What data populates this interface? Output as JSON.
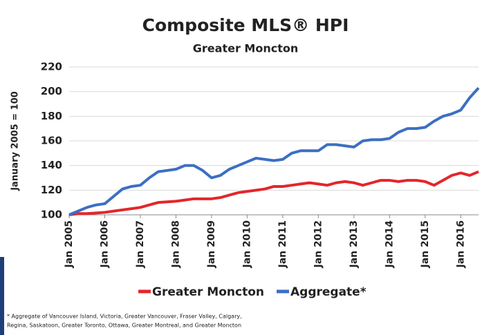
{
  "chart_data": {
    "type": "line",
    "title": "Composite MLS® HPI",
    "subtitle": "Greater Moncton",
    "y_label": "January 2005 = 100",
    "categories": [
      "Jan 2005",
      null,
      null,
      null,
      "Jan 2006",
      null,
      null,
      null,
      "Jan 2007",
      null,
      null,
      null,
      "Jan 2008",
      null,
      null,
      null,
      "Jan 2009",
      null,
      null,
      null,
      "Jan 2010",
      null,
      null,
      null,
      "Jan 2011",
      null,
      null,
      null,
      "Jan 2012",
      null,
      null,
      null,
      "Jan 2013",
      null,
      null,
      null,
      "Jan 2014",
      null,
      null,
      null,
      "Jan 2015",
      null,
      null,
      null,
      "Jan 2016",
      null,
      null
    ],
    "series": [
      {
        "name": "Greater Moncton",
        "color": "#e3262b",
        "values": [
          100,
          101,
          101,
          101.5,
          102,
          103,
          104,
          105,
          106,
          108,
          110,
          110.5,
          111,
          112,
          113,
          113,
          113,
          114,
          116,
          118,
          119,
          120,
          121,
          123,
          123,
          124,
          125,
          126,
          125,
          124,
          126,
          127,
          126,
          124,
          126,
          128,
          128,
          127,
          128,
          128,
          127,
          124,
          128,
          132,
          134,
          132,
          135
        ]
      },
      {
        "name": "Aggregate*",
        "color": "#3b6fc2",
        "values": [
          100,
          103,
          106,
          108,
          109,
          115,
          121,
          123,
          124,
          130,
          135,
          136,
          137,
          140,
          140,
          136,
          130,
          132,
          137,
          140,
          143,
          146,
          145,
          144,
          145,
          150,
          152,
          152,
          152,
          157,
          157,
          156,
          155,
          160,
          161,
          161,
          162,
          167,
          170,
          170,
          171,
          176,
          180,
          182,
          185,
          195,
          203
        ]
      }
    ],
    "ylim": [
      100,
      220
    ],
    "yticks": [
      100,
      120,
      140,
      160,
      180,
      200,
      220
    ],
    "grid": true,
    "legend": "bottom",
    "footnote": [
      "* Aggregate of Vancouver Island, Victoria, Greater Vancouver, Fraser Valley, Calgary,",
      "Regina, Saskatoon, Greater Toronto, Ottawa, Greater Montreal, and Greater Moncton"
    ]
  }
}
